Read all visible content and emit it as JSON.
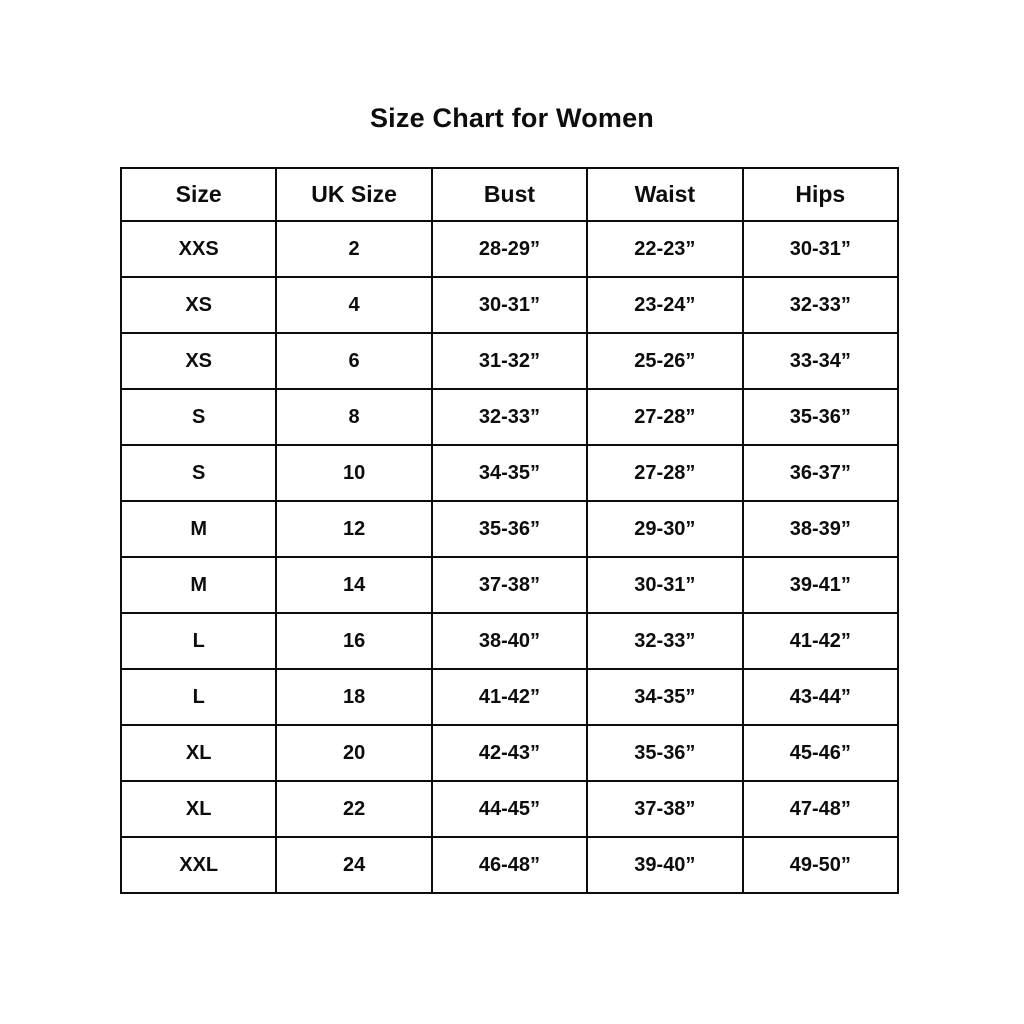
{
  "page": {
    "title": "Size Chart for Women"
  },
  "chart_data": {
    "type": "table",
    "title": "Size Chart for Women",
    "columns": [
      "Size",
      "UK Size",
      "Bust",
      "Waist",
      "Hips"
    ],
    "rows": [
      [
        "XXS",
        "2",
        "28-29”",
        "22-23”",
        "30-31”"
      ],
      [
        "XS",
        "4",
        "30-31”",
        "23-24”",
        "32-33”"
      ],
      [
        "XS",
        "6",
        "31-32”",
        "25-26”",
        "33-34”"
      ],
      [
        "S",
        "8",
        "32-33”",
        "27-28”",
        "35-36”"
      ],
      [
        "S",
        "10",
        "34-35”",
        "27-28”",
        "36-37”"
      ],
      [
        "M",
        "12",
        "35-36”",
        "29-30”",
        "38-39”"
      ],
      [
        "M",
        "14",
        "37-38”",
        "30-31”",
        "39-41”"
      ],
      [
        "L",
        "16",
        "38-40”",
        "32-33”",
        "41-42”"
      ],
      [
        "L",
        "18",
        "41-42”",
        "34-35”",
        "43-44”"
      ],
      [
        "XL",
        "20",
        "42-43”",
        "35-36”",
        "45-46”"
      ],
      [
        "XL",
        "22",
        "44-45”",
        "37-38”",
        "47-48”"
      ],
      [
        "XXL",
        "24",
        "46-48”",
        "39-40”",
        "49-50”"
      ]
    ],
    "layout": {
      "grid": "on",
      "border_color": "#0d0d0d",
      "background": "#ffffff",
      "text_color": "#0d0d0d"
    }
  }
}
